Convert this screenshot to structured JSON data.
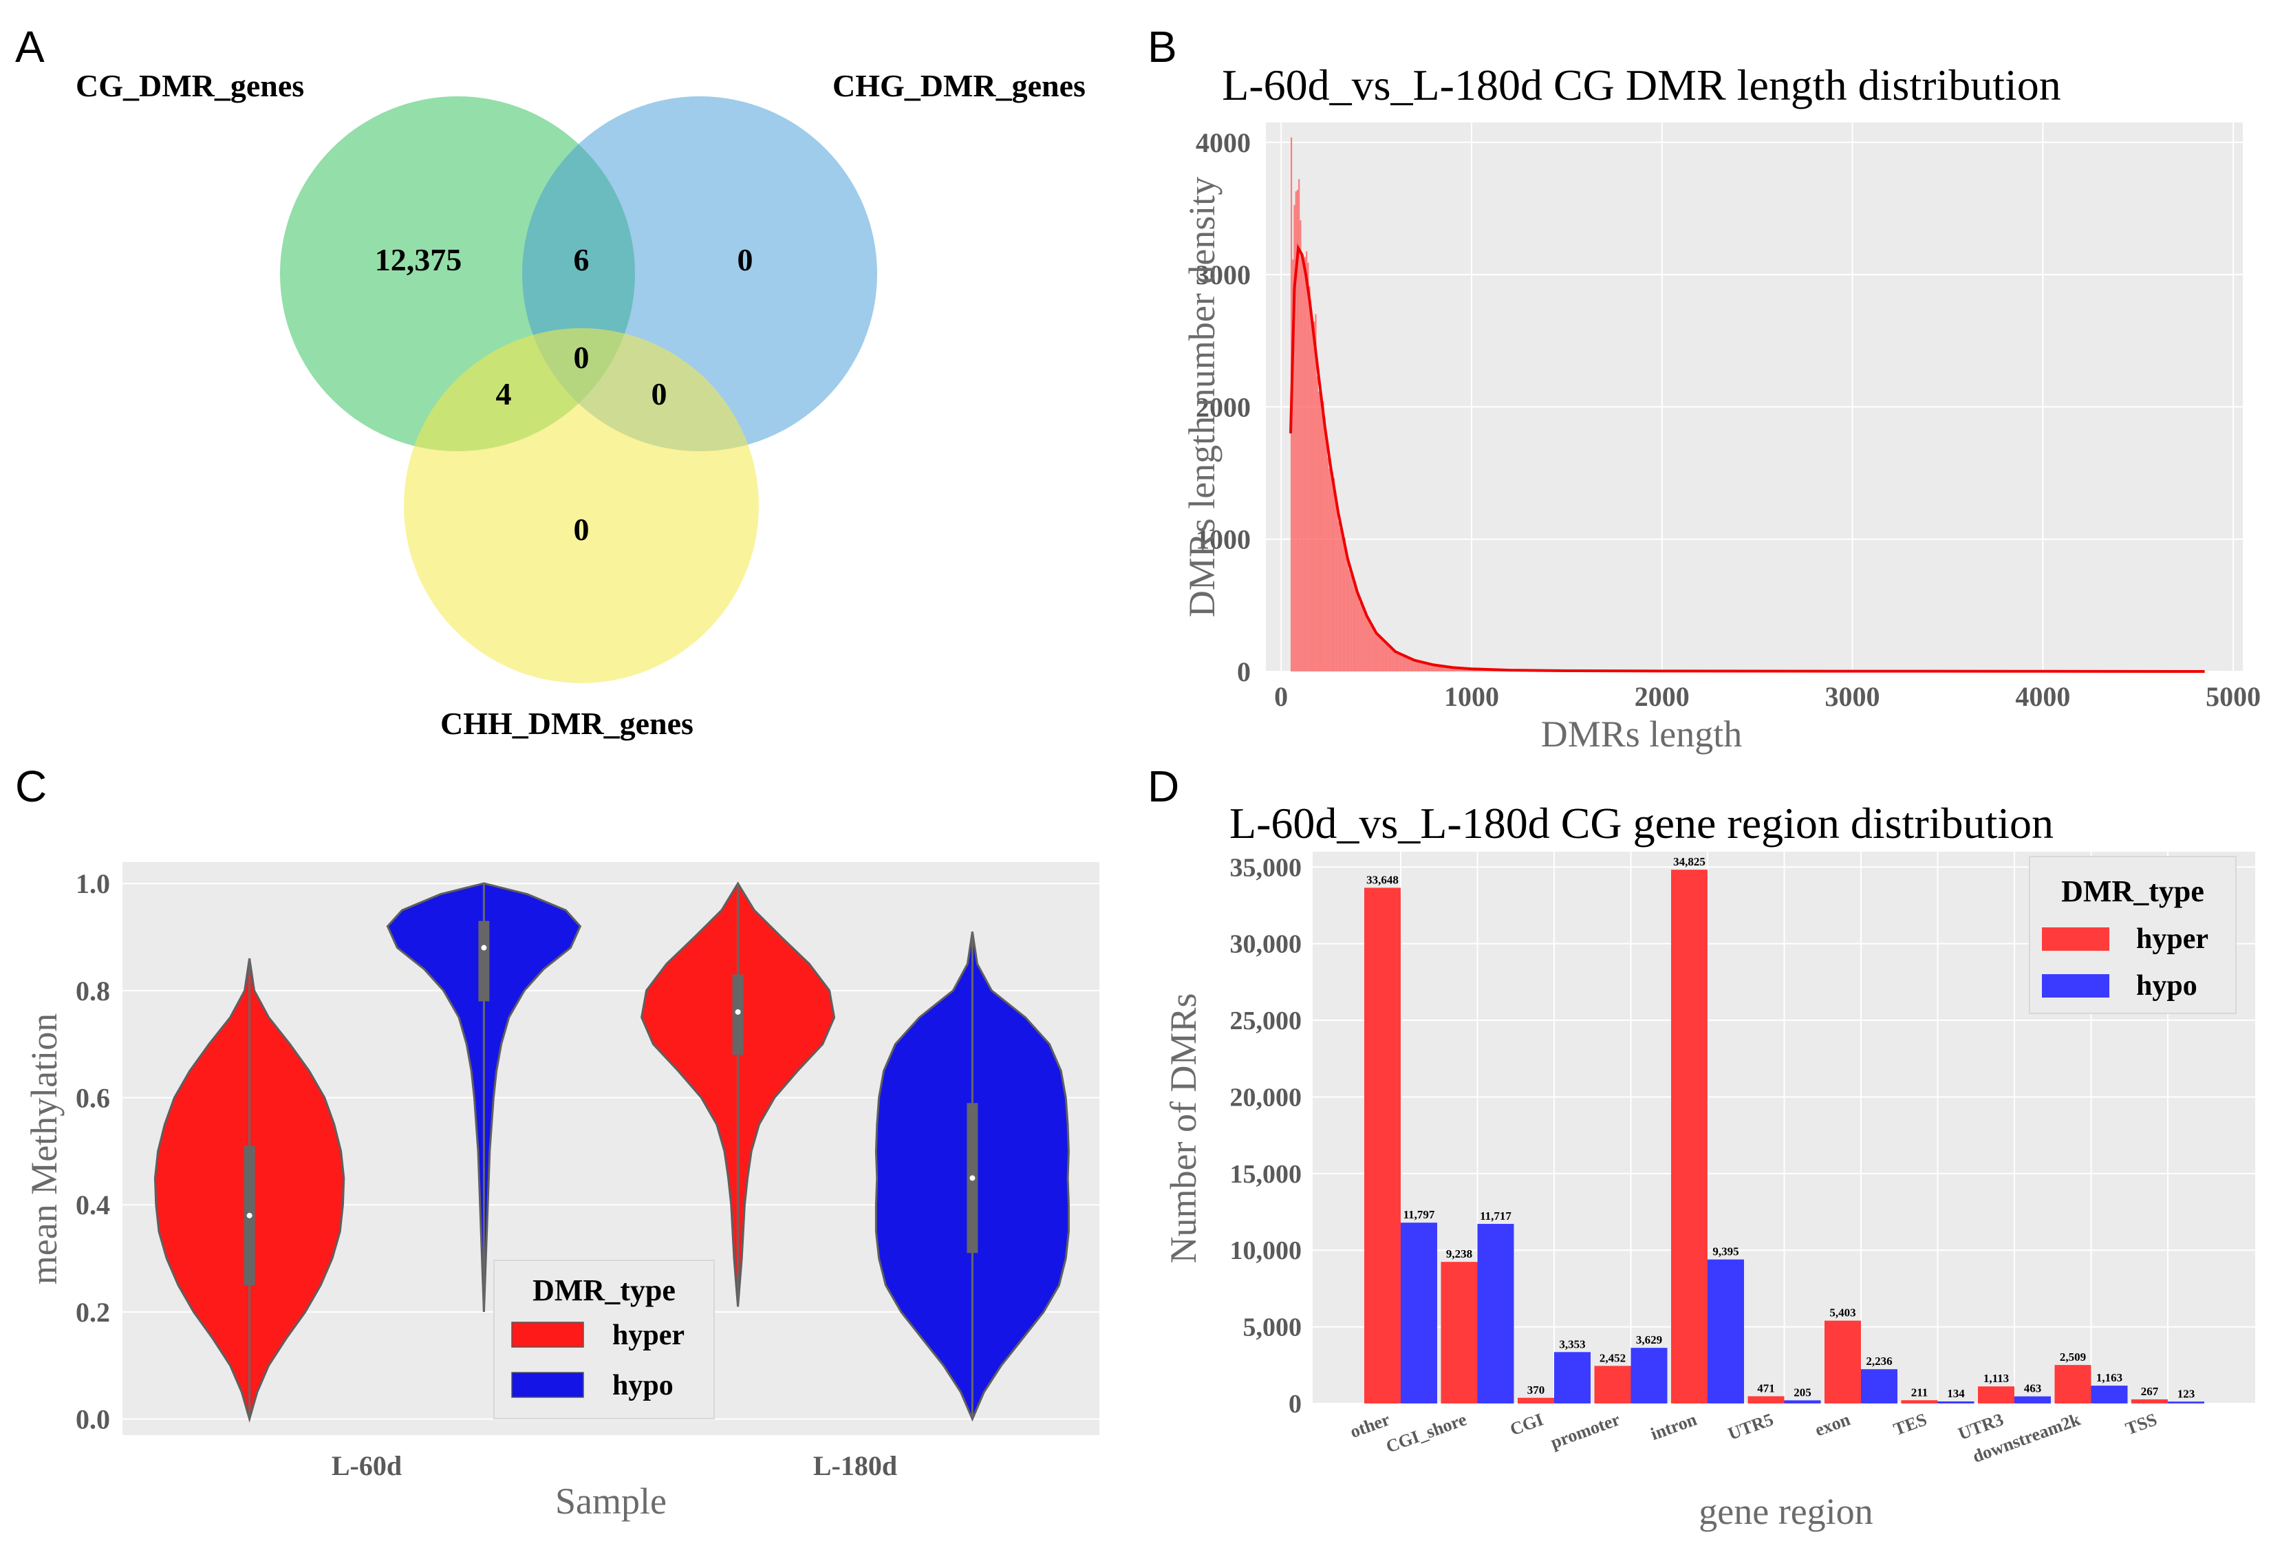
{
  "panels": {
    "A": {
      "letter": "A"
    },
    "B": {
      "letter": "B"
    },
    "C": {
      "letter": "C"
    },
    "D": {
      "letter": "D"
    }
  },
  "chart_data": [
    {
      "type": "venn",
      "sets": [
        "CG_DMR_genes",
        "CHG_DMR_genes",
        "CHH_DMR_genes"
      ],
      "regions": {
        "CG_only": "12,375",
        "CHG_only": "0",
        "CHH_only": "0",
        "CG_CHG": "6",
        "CG_CHH": "4",
        "CHG_CHH": "0",
        "CG_CHG_CHH": "0"
      },
      "colors": [
        "#4dc870",
        "#3f9ad6",
        "#f4e94a"
      ]
    },
    {
      "type": "histogram",
      "title": "L-60d_vs_L-180d CG DMR length distribution",
      "xlabel": "DMRs length",
      "ylabel": "DMRs length number density",
      "xlim": [
        -80,
        5050
      ],
      "ylim": [
        0,
        4150
      ],
      "xticks": [
        0,
        1000,
        2000,
        3000,
        4000,
        5000
      ],
      "yticks": [
        0,
        1000,
        2000,
        3000,
        4000
      ],
      "color": "#ff5a5a",
      "density_curve": {
        "x": [
          50,
          70,
          90,
          110,
          130,
          150,
          175,
          200,
          230,
          260,
          300,
          350,
          400,
          450,
          500,
          600,
          700,
          800,
          900,
          1000,
          1200,
          1500,
          2000,
          3000,
          4000,
          4850
        ],
        "y": [
          1800,
          2900,
          3200,
          3150,
          3000,
          2800,
          2500,
          2200,
          1850,
          1550,
          1200,
          850,
          600,
          420,
          290,
          150,
          85,
          50,
          30,
          20,
          10,
          5,
          3,
          2,
          1,
          0
        ]
      },
      "histogram_peaks": {
        "x": [
          50,
          58,
          66,
          74,
          82,
          90,
          100,
          110,
          120,
          135,
          150,
          165,
          180
        ],
        "y": [
          4080,
          3300,
          3700,
          3600,
          3450,
          3550,
          3400,
          3300,
          3150,
          2950,
          2900,
          2700,
          2550
        ]
      }
    },
    {
      "type": "violin",
      "xlabel": "Sample",
      "ylabel": "mean Methylation",
      "categories": [
        "L-60d",
        "L-180d"
      ],
      "ylim": [
        -0.03,
        1.04
      ],
      "yticks": [
        "0.0",
        "0.2",
        "0.4",
        "0.6",
        "0.8",
        "1.0"
      ],
      "legend_title": "DMR_type",
      "series": [
        {
          "name": "hyper",
          "color": "#ff1a1a",
          "violins": [
            {
              "min": 0.0,
              "max": 0.86,
              "q1": 0.25,
              "median": 0.38,
              "q3": 0.51,
              "y": [
                0.0,
                0.05,
                0.1,
                0.15,
                0.2,
                0.25,
                0.3,
                0.35,
                0.4,
                0.45,
                0.5,
                0.55,
                0.6,
                0.65,
                0.7,
                0.75,
                0.8,
                0.86
              ],
              "w": [
                0.0,
                0.08,
                0.2,
                0.38,
                0.58,
                0.74,
                0.86,
                0.94,
                0.97,
                0.98,
                0.95,
                0.88,
                0.78,
                0.62,
                0.42,
                0.2,
                0.05,
                0.0
              ]
            },
            {
              "min": 0.21,
              "max": 1.0,
              "q1": 0.68,
              "median": 0.76,
              "q3": 0.83,
              "y": [
                0.21,
                0.3,
                0.4,
                0.45,
                0.5,
                0.55,
                0.6,
                0.65,
                0.7,
                0.75,
                0.8,
                0.85,
                0.9,
                0.95,
                1.0
              ],
              "w": [
                0.0,
                0.04,
                0.07,
                0.1,
                0.14,
                0.22,
                0.38,
                0.62,
                0.88,
                1.0,
                0.95,
                0.74,
                0.45,
                0.17,
                0.0
              ]
            }
          ]
        },
        {
          "name": "hypo",
          "color": "#1414e6",
          "violins": [
            {
              "min": 0.2,
              "max": 1.0,
              "q1": 0.78,
              "median": 0.88,
              "q3": 0.93,
              "y": [
                0.2,
                0.3,
                0.4,
                0.5,
                0.55,
                0.6,
                0.65,
                0.7,
                0.75,
                0.8,
                0.84,
                0.88,
                0.92,
                0.95,
                0.98,
                1.0
              ],
              "w": [
                0.0,
                0.02,
                0.04,
                0.06,
                0.08,
                0.1,
                0.13,
                0.18,
                0.26,
                0.42,
                0.62,
                0.9,
                1.0,
                0.85,
                0.45,
                0.0
              ]
            },
            {
              "min": 0.0,
              "max": 0.91,
              "q1": 0.31,
              "median": 0.45,
              "q3": 0.59,
              "y": [
                0.0,
                0.05,
                0.1,
                0.15,
                0.2,
                0.25,
                0.3,
                0.35,
                0.4,
                0.45,
                0.5,
                0.55,
                0.6,
                0.65,
                0.7,
                0.75,
                0.8,
                0.85,
                0.91
              ],
              "w": [
                0.0,
                0.12,
                0.3,
                0.52,
                0.74,
                0.9,
                0.97,
                1.0,
                1.0,
                0.99,
                1.0,
                0.99,
                0.97,
                0.92,
                0.8,
                0.55,
                0.2,
                0.05,
                0.0
              ]
            }
          ]
        }
      ]
    },
    {
      "type": "bar",
      "title": "L-60d_vs_L-180d CG gene region distribution",
      "xlabel": "gene region",
      "ylabel": "Number of DMRs",
      "ylim": [
        0,
        36000
      ],
      "yticks": [
        "0",
        "5,000",
        "10,000",
        "15,000",
        "20,000",
        "25,000",
        "30,000",
        "35,000"
      ],
      "categories": [
        "other",
        "CGI_shore",
        "CGI",
        "promoter",
        "intron",
        "UTR5",
        "exon",
        "TES",
        "UTR3",
        "downstream2k",
        "TSS"
      ],
      "legend_title": "DMR_type",
      "series": [
        {
          "name": "hyper",
          "color": "#ff3b3b",
          "values": [
            33648,
            9238,
            370,
            2452,
            34825,
            471,
            5403,
            211,
            1113,
            2509,
            267
          ],
          "labels": [
            "33,648",
            "9,238",
            "370",
            "2,452",
            "34,825",
            "471",
            "5,403",
            "211",
            "1,113",
            "2,509",
            "267"
          ]
        },
        {
          "name": "hypo",
          "color": "#3b3bff",
          "values": [
            11797,
            11717,
            3353,
            3629,
            9395,
            205,
            2236,
            134,
            463,
            1163,
            123
          ],
          "labels": [
            "11,797",
            "11,717",
            "3,353",
            "3,629",
            "9,395",
            "205",
            "2,236",
            "134",
            "463",
            "1,163",
            "123"
          ]
        }
      ]
    }
  ]
}
